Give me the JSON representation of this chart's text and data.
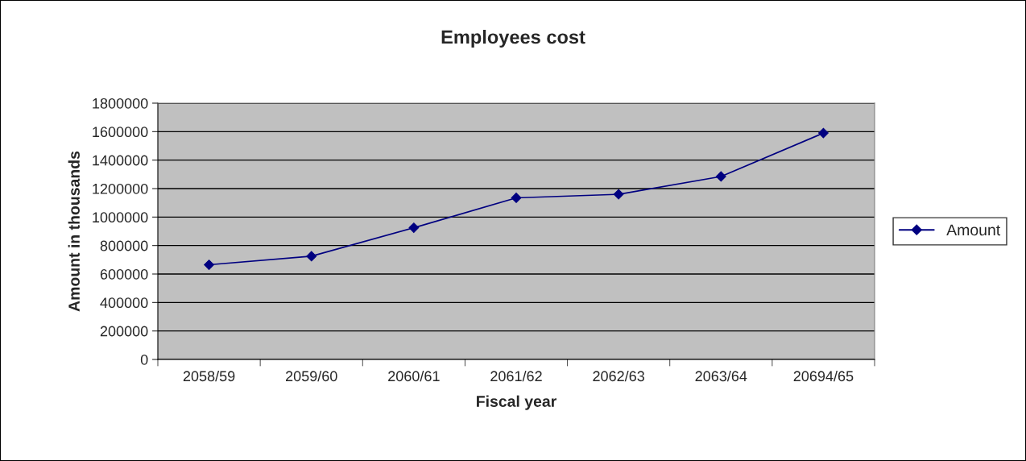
{
  "chart_data": {
    "type": "line",
    "title": "Employees cost",
    "xlabel": "Fiscal year",
    "ylabel": "Amount in thousands",
    "categories": [
      "2058/59",
      "2059/60",
      "2060/61",
      "2061/62",
      "2062/63",
      "2063/64",
      "20694/65"
    ],
    "series": [
      {
        "name": "Amount",
        "color": "#000080",
        "values": [
          665000,
          725000,
          925000,
          1135000,
          1160000,
          1285000,
          1590000
        ]
      }
    ],
    "ylim": [
      0,
      1800000
    ],
    "yticks": [
      0,
      200000,
      400000,
      600000,
      800000,
      1000000,
      1200000,
      1400000,
      1600000,
      1800000
    ],
    "grid": "y",
    "legend": "right",
    "marker": "diamond",
    "line_style": "solid"
  }
}
